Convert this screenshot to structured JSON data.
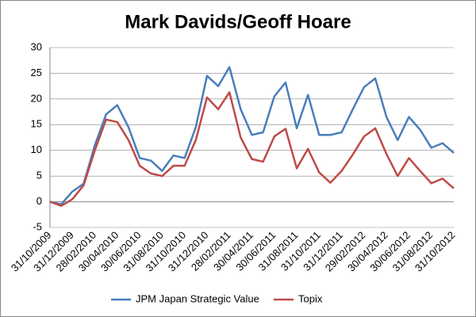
{
  "chart_data": {
    "type": "line",
    "title": "Mark Davids/Geoff Hoare",
    "categories": [
      "31/10/2009",
      null,
      "31/12/2009",
      null,
      "28/02/2010",
      null,
      "30/04/2010",
      null,
      "30/06/2010",
      null,
      "31/08/2010",
      null,
      "31/10/2010",
      null,
      "31/12/2010",
      null,
      "28/02/2011",
      null,
      "30/04/2011",
      null,
      "30/06/2011",
      null,
      "31/08/2011",
      null,
      "31/10/2011",
      null,
      "31/12/2011",
      null,
      "29/02/2012",
      null,
      "30/04/2012",
      null,
      "30/06/2012",
      null,
      "31/08/2012",
      null,
      "31/10/2012"
    ],
    "series": [
      {
        "name": "JPM Japan Strategic Value",
        "color": "#4a7ebb",
        "values": [
          0,
          -0.5,
          2,
          3.5,
          11,
          17,
          18.8,
          14.5,
          8.5,
          8,
          6,
          9,
          8.5,
          14.5,
          24.5,
          22.5,
          26.2,
          18,
          13,
          13.5,
          20.5,
          23.2,
          14.3,
          20.8,
          13,
          13,
          13.5,
          18,
          22.3,
          24,
          16.5,
          12,
          16.5,
          14,
          10.5,
          11.4,
          9.5
        ]
      },
      {
        "name": "Topix",
        "color": "#be4b48",
        "values": [
          0,
          -0.8,
          0.5,
          3.2,
          10,
          16,
          15.5,
          12,
          7,
          5.5,
          5,
          7,
          7,
          12,
          20.3,
          18,
          21.3,
          12.5,
          8.3,
          7.8,
          12.7,
          14.2,
          6.5,
          10.3,
          5.7,
          3.7,
          6,
          9.2,
          12.7,
          14.3,
          9.3,
          5,
          8.5,
          6,
          3.6,
          4.5,
          2.6
        ]
      }
    ],
    "ylim": [
      -5,
      30
    ],
    "yticks": [
      -5,
      0,
      5,
      10,
      15,
      20,
      25,
      30
    ],
    "grid": true,
    "legend": "bottom"
  }
}
